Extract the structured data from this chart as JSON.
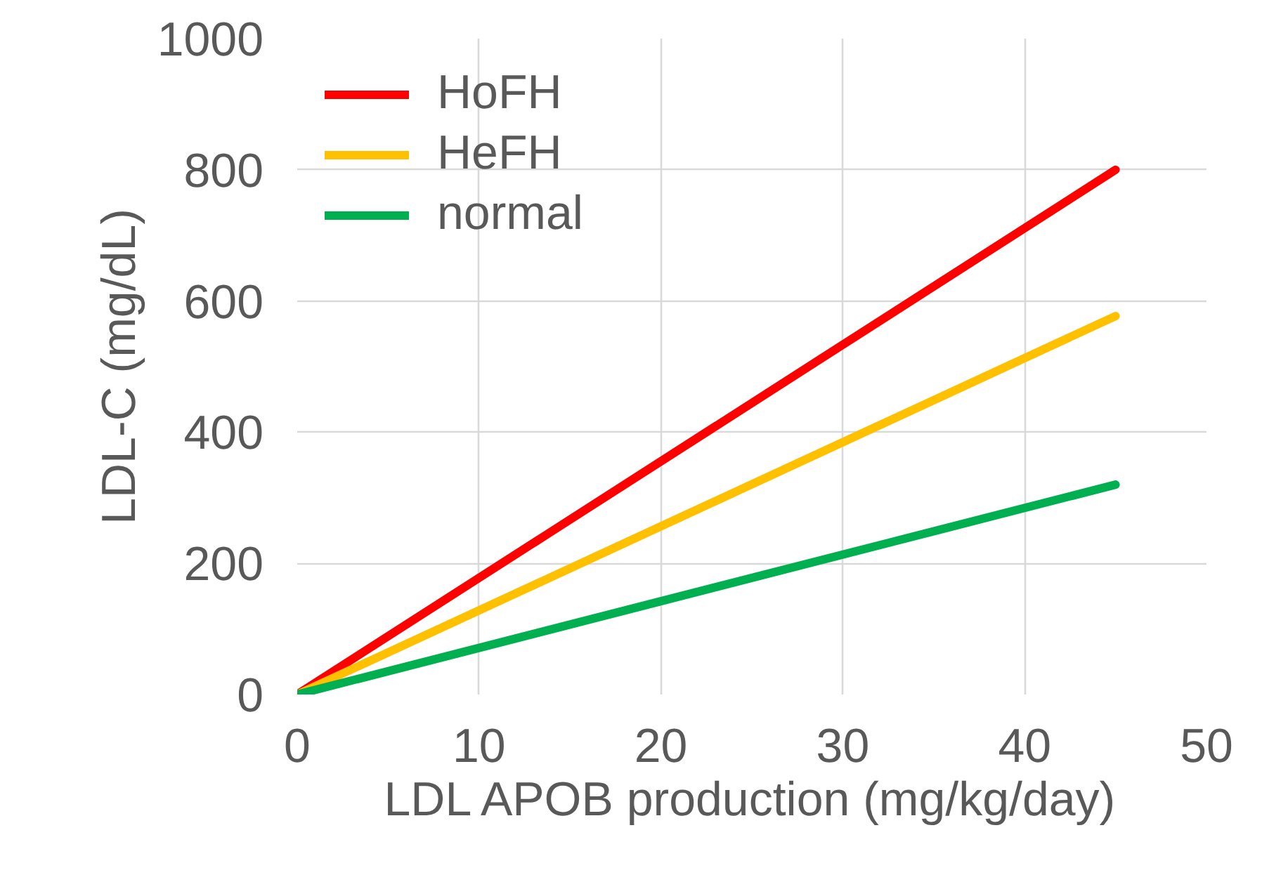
{
  "chart_data": {
    "type": "line",
    "xlabel": "LDL APOB production (mg/kg/day)",
    "ylabel": "LDL-C (mg/dL)",
    "xlim": [
      0,
      50
    ],
    "xticks": [
      0,
      10,
      20,
      30,
      40,
      50
    ],
    "ylim": [
      0,
      1000
    ],
    "yticks": [
      0,
      200,
      400,
      600,
      800,
      1000
    ],
    "grid": true,
    "legend": "top left",
    "marker": "none",
    "line_style": "solid",
    "x": [
      0,
      45
    ],
    "series": [
      {
        "name": "HoFH",
        "color": "#ff0000",
        "values": [
          0,
          800
        ]
      },
      {
        "name": "HeFH",
        "color": "#ffc000",
        "values": [
          0,
          577
        ]
      },
      {
        "name": "normal",
        "color": "#00b050",
        "values": [
          0,
          320
        ]
      }
    ]
  }
}
